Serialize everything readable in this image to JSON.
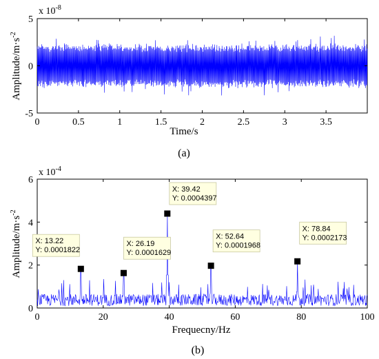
{
  "chart_data": [
    {
      "type": "line",
      "panel_label": "(a)",
      "ylabel": "Amplitude/m·s",
      "ylabel_sup": "-2",
      "xlabel": "Time/s",
      "y_multiplier": "x 10",
      "y_multiplier_exp": "-8",
      "xlim": [
        0,
        4
      ],
      "ylim": [
        -5,
        5
      ],
      "xticks": [
        "0",
        "0.5",
        "1",
        "1.5",
        "2",
        "2.5",
        "3",
        "3.5"
      ],
      "xtick_values": [
        0,
        0.5,
        1,
        1.5,
        2,
        2.5,
        3,
        3.5
      ],
      "yticks": [
        "-5",
        "0",
        "5"
      ],
      "ytick_values": [
        -5,
        0,
        5
      ],
      "color": "#0000ff",
      "signal": "dense oscillation, amplitude about ±2 (x1e-8), occasional peaks near ±3"
    },
    {
      "type": "line",
      "panel_label": "(b)",
      "ylabel": "Amplitude/m·s",
      "ylabel_sup": "-2",
      "xlabel": "Frequecny/Hz",
      "y_multiplier": "x 10",
      "y_multiplier_exp": "-4",
      "xlim": [
        0,
        100
      ],
      "ylim": [
        0,
        6
      ],
      "xticks": [
        "0",
        "20",
        "40",
        "60",
        "80",
        "100"
      ],
      "xtick_values": [
        0,
        20,
        40,
        60,
        80,
        100
      ],
      "yticks": [
        "0",
        "2",
        "4",
        "6"
      ],
      "ytick_values": [
        0,
        2,
        4,
        6
      ],
      "color": "#0000ff",
      "noise_floor": 0.5,
      "peaks": [
        {
          "x": 13.22,
          "y": 1.822,
          "label_x": "X: 13.22",
          "label_y": "Y: 0.0001822"
        },
        {
          "x": 26.19,
          "y": 1.629,
          "label_x": "X: 26.19",
          "label_y": "Y: 0.0001629"
        },
        {
          "x": 39.42,
          "y": 4.397,
          "label_x": "X: 39.42",
          "label_y": "Y: 0.0004397"
        },
        {
          "x": 52.64,
          "y": 1.968,
          "label_x": "X: 52.64",
          "label_y": "Y: 0.0001968"
        },
        {
          "x": 78.84,
          "y": 2.173,
          "label_x": "X: 78.84",
          "label_y": "Y: 0.0002173"
        }
      ]
    }
  ]
}
